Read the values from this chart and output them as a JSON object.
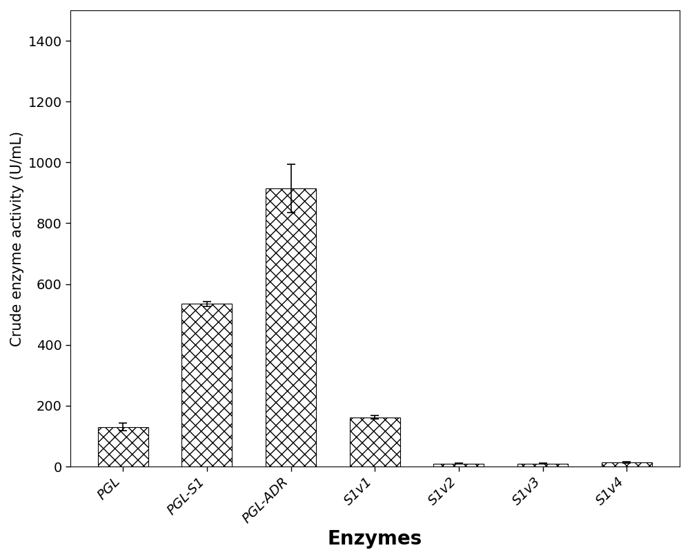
{
  "categories": [
    "PGL",
    "PGL-S1",
    "PGL-ADR",
    "S1v1",
    "S1v2",
    "S1v3",
    "S1v4"
  ],
  "values": [
    130,
    535,
    915,
    162,
    10,
    10,
    14
  ],
  "errors": [
    12,
    8,
    80,
    6,
    2,
    2,
    3
  ],
  "ylabel": "Crude enzyme activity (U/mL)",
  "xlabel": "Enzymes",
  "ylim": [
    0,
    1500
  ],
  "yticks": [
    0,
    200,
    400,
    600,
    800,
    1000,
    1200,
    1400
  ],
  "bar_width": 0.6,
  "bar_facecolor": "white",
  "bar_edgecolor": "black",
  "hatch": "xx",
  "xlabel_fontsize": 20,
  "ylabel_fontsize": 15,
  "tick_fontsize": 14,
  "xlabel_rotation": 45,
  "figsize": [
    10.0,
    8.1
  ],
  "dpi": 100
}
